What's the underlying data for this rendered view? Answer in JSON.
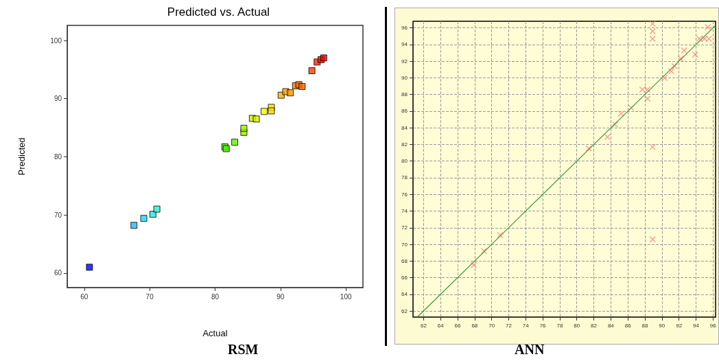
{
  "chart_data": [
    {
      "type": "scatter",
      "title": "Predicted vs. Actual",
      "xlabel": "Actual",
      "ylabel": "Predicted",
      "annotations": [
        "RSM"
      ],
      "xlim": [
        57.4,
        102.6
      ],
      "ylim": [
        57.5,
        102.6
      ],
      "xticks": [
        60,
        70,
        80,
        90,
        100
      ],
      "yticks": [
        60,
        70,
        80,
        90,
        100
      ],
      "grid": false,
      "marker": "square",
      "series": [
        {
          "x": [
            60.8,
            67.6,
            69.1,
            70.5,
            71.1,
            81.5,
            81.7,
            83.0,
            84.4,
            84.4,
            85.7,
            86.3,
            87.5,
            88.6,
            88.6,
            90.1,
            90.8,
            91.5,
            92.3,
            92.8,
            93.3,
            94.8,
            95.6,
            96.2,
            96.6
          ],
          "values": [
            61.0,
            68.2,
            69.4,
            70.1,
            71.0,
            81.7,
            81.4,
            82.5,
            84.2,
            84.9,
            86.6,
            86.5,
            87.8,
            88.5,
            87.9,
            90.6,
            91.2,
            91.0,
            92.2,
            92.4,
            92.1,
            94.8,
            96.3,
            96.7,
            97.0
          ],
          "colors": [
            "#0000ff",
            "#22b4ff",
            "#22d4f0",
            "#22e6e0",
            "#22f0d0",
            "#40f000",
            "#50ee00",
            "#66ee00",
            "#99ee00",
            "#a0ee00",
            "#c4f000",
            "#d8f000",
            "#ffff00",
            "#ffe400",
            "#ffd800",
            "#ffb000",
            "#ffa000",
            "#ff9400",
            "#ff7400",
            "#ff6a00",
            "#ff5c00",
            "#ff3a00",
            "#ff2400",
            "#ff1400",
            "#ee0000"
          ]
        }
      ]
    },
    {
      "type": "scatter",
      "annotations": [
        "ANN"
      ],
      "xlim": [
        60.76,
        96.3
      ],
      "ylim": [
        61.26,
        96.8
      ],
      "xticks": [
        62,
        64,
        66,
        68,
        70,
        72,
        74,
        76,
        78,
        80,
        82,
        84,
        86,
        88,
        90,
        92,
        94,
        96
      ],
      "yticks": [
        62,
        64,
        66,
        68,
        70,
        72,
        74,
        76,
        78,
        80,
        82,
        84,
        86,
        88,
        90,
        92,
        94,
        96
      ],
      "grid": true,
      "series": [
        {
          "color": "#ff7f7f",
          "marker": "cross",
          "x": [
            88.9,
            88.9,
            88.9,
            95.4,
            94.4,
            95.0,
            95.5,
            93.9,
            92.6,
            92.2,
            91.5,
            91.1,
            90.3,
            87.7,
            88.3,
            88.3,
            86.4,
            85.2,
            84.5,
            83.6,
            81.4,
            88.9,
            67.9,
            69.1,
            71.0,
            88.9
          ],
          "values": [
            96.5,
            95.6,
            94.7,
            96.1,
            94.7,
            94.7,
            94.7,
            92.8,
            93.3,
            92.3,
            91.4,
            90.8,
            90.0,
            88.6,
            88.6,
            87.5,
            86.4,
            85.7,
            84.4,
            82.9,
            81.5,
            81.7,
            67.5,
            69.2,
            71.1,
            70.6
          ]
        },
        {
          "type": "line",
          "color": "#3a9a3a",
          "x": [
            61.3,
            96.3
          ],
          "values": [
            61.3,
            96.3
          ]
        }
      ]
    }
  ]
}
